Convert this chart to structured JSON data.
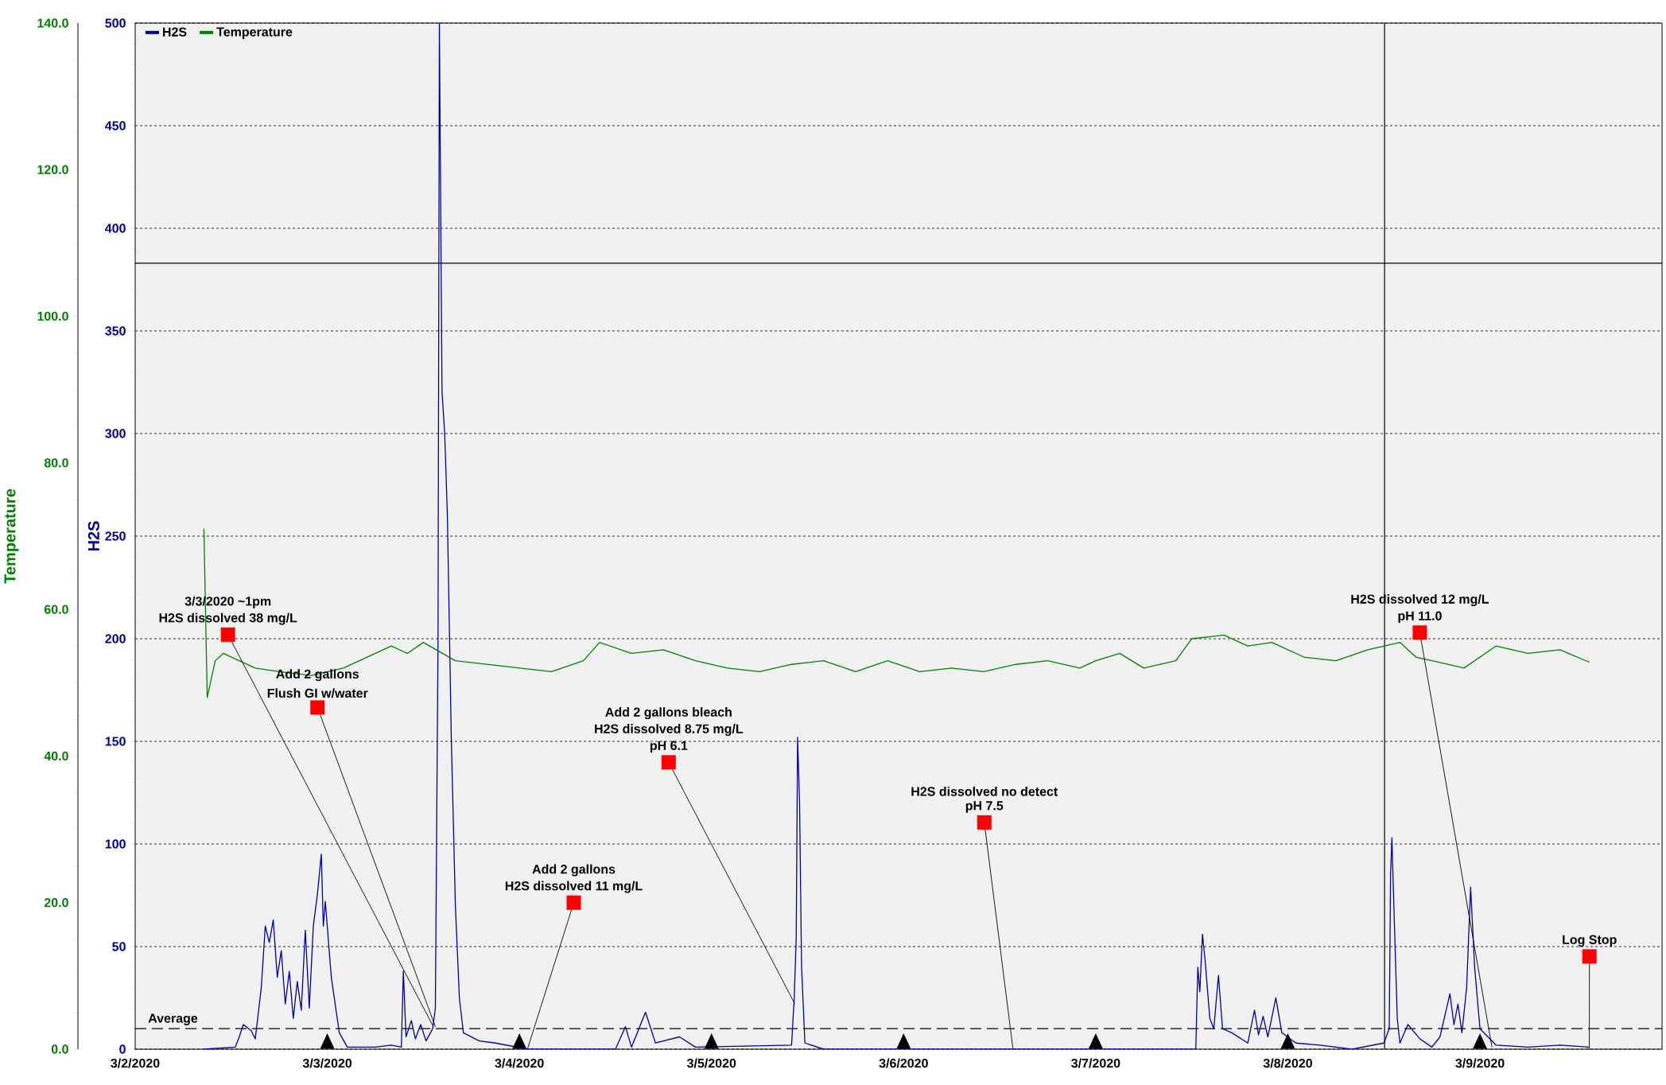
{
  "chart_data": {
    "type": "line",
    "xlabel": null,
    "ylabel": "H2S",
    "y2label": "Temperature",
    "xlim": [
      "2020-03-02",
      "2020-03-09T22:45"
    ],
    "xticks": [
      {
        "value": "2020-03-02",
        "label": "3/2/2020"
      },
      {
        "value": "2020-03-03",
        "label": "3/3/2020"
      },
      {
        "value": "2020-03-04",
        "label": "3/4/2020"
      },
      {
        "value": "2020-03-05",
        "label": "3/5/2020"
      },
      {
        "value": "2020-03-06",
        "label": "3/6/2020"
      },
      {
        "value": "2020-03-07",
        "label": "3/7/2020"
      },
      {
        "value": "2020-03-08",
        "label": "3/8/2020"
      },
      {
        "value": "2020-03-09",
        "label": "3/9/2020"
      }
    ],
    "ylim": [
      0,
      500
    ],
    "yticks": [
      0,
      50,
      100,
      150,
      200,
      250,
      300,
      350,
      400,
      450,
      500
    ],
    "y2lim": [
      0,
      140
    ],
    "y2ticks": [
      {
        "value": 0,
        "label": "0.0"
      },
      {
        "value": 20,
        "label": "20.0"
      },
      {
        "value": 40,
        "label": "40.0"
      },
      {
        "value": 60,
        "label": "60.0"
      },
      {
        "value": 80,
        "label": "80.0"
      },
      {
        "value": 100,
        "label": "100.0"
      },
      {
        "value": 120,
        "label": "120.0"
      },
      {
        "value": 140,
        "label": "140.0"
      }
    ],
    "grid": "y",
    "legend": "top left",
    "series": [
      {
        "name": "H2S",
        "color": "#0000a0",
        "x": [
          "2020-03-02T08:30",
          "2020-03-02T12:30",
          "2020-03-02T13:00",
          "2020-03-02T13:30",
          "2020-03-02T14:30",
          "2020-03-02T15:00",
          "2020-03-02T15:45",
          "2020-03-02T16:15",
          "2020-03-02T16:45",
          "2020-03-02T17:15",
          "2020-03-02T17:45",
          "2020-03-02T18:15",
          "2020-03-02T18:45",
          "2020-03-02T19:15",
          "2020-03-02T19:45",
          "2020-03-02T20:15",
          "2020-03-02T20:45",
          "2020-03-02T21:15",
          "2020-03-02T21:45",
          "2020-03-02T22:15",
          "2020-03-02T22:45",
          "2020-03-02T23:15",
          "2020-03-02T23:30",
          "2020-03-02T23:45",
          "2020-03-03T00:30",
          "2020-03-03T01:30",
          "2020-03-03T02:30",
          "2020-03-03T06:00",
          "2020-03-03T08:00",
          "2020-03-03T09:15",
          "2020-03-03T09:30",
          "2020-03-03T09:50",
          "2020-03-03T10:30",
          "2020-03-03T11:00",
          "2020-03-03T11:40",
          "2020-03-03T12:20",
          "2020-03-03T13:10",
          "2020-03-03T13:30",
          "2020-03-03T13:50",
          "2020-03-03T14:00",
          "2020-03-03T14:10",
          "2020-03-03T14:20",
          "2020-03-03T14:40",
          "2020-03-03T15:00",
          "2020-03-03T15:30",
          "2020-03-03T16:00",
          "2020-03-03T16:30",
          "2020-03-03T17:00",
          "2020-03-03T19:00",
          "2020-03-03T21:00",
          "2020-03-04T01:00",
          "2020-03-04T12:00",
          "2020-03-04T13:15",
          "2020-03-04T14:00",
          "2020-03-04T15:45",
          "2020-03-04T17:00",
          "2020-03-04T20:00",
          "2020-03-04T22:00",
          "2020-03-05T10:00",
          "2020-03-05T10:20",
          "2020-03-05T10:35",
          "2020-03-05T10:45",
          "2020-03-05T11:00",
          "2020-03-05T11:15",
          "2020-03-05T11:40",
          "2020-03-05T14:00",
          "2020-03-07T12:30",
          "2020-03-07T12:45",
          "2020-03-07T13:00",
          "2020-03-07T13:20",
          "2020-03-07T13:40",
          "2020-03-07T14:15",
          "2020-03-07T14:45",
          "2020-03-07T15:20",
          "2020-03-07T15:50",
          "2020-03-07T17:00",
          "2020-03-07T19:00",
          "2020-03-07T19:50",
          "2020-03-07T20:20",
          "2020-03-07T20:55",
          "2020-03-07T21:30",
          "2020-03-07T22:30",
          "2020-03-07T23:15",
          "2020-03-08T01:00",
          "2020-03-08T04:00",
          "2020-03-08T08:00",
          "2020-03-08T12:00",
          "2020-03-08T12:40",
          "2020-03-08T12:50",
          "2020-03-08T13:00",
          "2020-03-08T13:10",
          "2020-03-08T13:40",
          "2020-03-08T14:00",
          "2020-03-08T15:00",
          "2020-03-08T16:30",
          "2020-03-08T18:00",
          "2020-03-08T19:00",
          "2020-03-08T20:15",
          "2020-03-08T20:45",
          "2020-03-08T21:15",
          "2020-03-08T21:45",
          "2020-03-08T22:20",
          "2020-03-08T22:50",
          "2020-03-08T23:20",
          "2020-03-09T00:00",
          "2020-03-09T02:00",
          "2020-03-09T06:00",
          "2020-03-09T10:00",
          "2020-03-09T13:40"
        ],
        "values": [
          0,
          1,
          6,
          12,
          9,
          5,
          30,
          60,
          52,
          63,
          35,
          48,
          22,
          38,
          15,
          33,
          19,
          58,
          20,
          60,
          75,
          95,
          60,
          72,
          35,
          8,
          1,
          1,
          2,
          1,
          38,
          6,
          14,
          5,
          12,
          4,
          10,
          20,
          200,
          500,
          410,
          320,
          300,
          260,
          150,
          70,
          25,
          8,
          4,
          3,
          0,
          0,
          11,
          1,
          18,
          3,
          6,
          1,
          2,
          25,
          55,
          152,
          120,
          40,
          3,
          0,
          0,
          40,
          28,
          56,
          43,
          15,
          10,
          36,
          10,
          8,
          3,
          19,
          7,
          16,
          6,
          25,
          8,
          3,
          2,
          0,
          3,
          10,
          85,
          103,
          80,
          15,
          3,
          12,
          5,
          1,
          6,
          27,
          12,
          22,
          8,
          30,
          79,
          40,
          10,
          2,
          1,
          2,
          1
        ]
      },
      {
        "name": "Temperature",
        "color": "#008000",
        "axis": "y2",
        "x": [
          "2020-03-02T08:35",
          "2020-03-02T09:00",
          "2020-03-02T10:00",
          "2020-03-02T11:00",
          "2020-03-02T13:00",
          "2020-03-02T15:00",
          "2020-03-02T18:00",
          "2020-03-02T22:00",
          "2020-03-03T02:00",
          "2020-03-03T06:00",
          "2020-03-03T08:00",
          "2020-03-03T10:00",
          "2020-03-03T12:00",
          "2020-03-03T16:00",
          "2020-03-03T20:00",
          "2020-03-04T00:00",
          "2020-03-04T04:00",
          "2020-03-04T08:00",
          "2020-03-04T10:00",
          "2020-03-04T14:00",
          "2020-03-04T18:00",
          "2020-03-04T22:00",
          "2020-03-05T02:00",
          "2020-03-05T06:00",
          "2020-03-05T10:00",
          "2020-03-05T14:00",
          "2020-03-05T18:00",
          "2020-03-05T22:00",
          "2020-03-06T02:00",
          "2020-03-06T06:00",
          "2020-03-06T10:00",
          "2020-03-06T14:00",
          "2020-03-06T18:00",
          "2020-03-06T22:00",
          "2020-03-07T00:00",
          "2020-03-07T03:00",
          "2020-03-07T06:00",
          "2020-03-07T10:00",
          "2020-03-07T12:00",
          "2020-03-07T16:00",
          "2020-03-07T19:00",
          "2020-03-07T22:00",
          "2020-03-08T02:00",
          "2020-03-08T06:00",
          "2020-03-08T10:00",
          "2020-03-08T14:00",
          "2020-03-08T16:00",
          "2020-03-08T20:00",
          "2020-03-08T22:00",
          "2020-03-09T02:00",
          "2020-03-09T06:00",
          "2020-03-09T10:00",
          "2020-03-09T13:40"
        ],
        "values": [
          71,
          48,
          53,
          54,
          53,
          52,
          51.5,
          51,
          52,
          54,
          55,
          54,
          55.5,
          53,
          52.5,
          52,
          51.5,
          53,
          55.5,
          54,
          54.5,
          53,
          52,
          51.5,
          52.5,
          53,
          51.5,
          53,
          51.5,
          52,
          51.5,
          52.5,
          53,
          52,
          53,
          54,
          52,
          53,
          56,
          56.5,
          55,
          55.5,
          53.5,
          53,
          54.5,
          55.5,
          53.5,
          52.5,
          52,
          55,
          54,
          54.5,
          52.8
        ]
      }
    ],
    "ref_lines": [
      {
        "axis": "y",
        "value": 10,
        "label": "Average",
        "color": "#000000",
        "line_style": "dashed"
      },
      {
        "axis": "y",
        "value": 383,
        "color": "#000000",
        "line_style": "solid"
      },
      {
        "axis": "x",
        "value": "2020-03-08T12:05",
        "color": "#000000",
        "line_style": "solid"
      }
    ],
    "annotations": [
      "3/3/2020 ~1pm",
      {
        "text": "H2S dissolved 38 mg/L",
        "x": "2020-03-03T13:15",
        "y": 11
      },
      "Add 2 gallons",
      {
        "text": "Flush GI w/water",
        "x": "2020-03-03T13:30",
        "y": 11
      },
      "Add 2 gallons",
      {
        "text": "H2S dissolved 11 mg/L",
        "x": "2020-03-04T01:00",
        "y": 0
      },
      "Add 2 gallons bleach",
      "H2S dissolved 8.75 mg/L",
      {
        "text": "pH 6.1",
        "x": "2020-03-05T10:25",
        "y": 22
      },
      "H2S dissolved no detect",
      {
        "text": "pH 7.5",
        "x": "2020-03-06T13:40",
        "y": 0
      },
      "H2S dissolved 12 mg/L",
      {
        "text": "pH 11.0",
        "x": "2020-03-09T01:30",
        "y": 1
      },
      {
        "text": "Log Stop",
        "x": "2020-03-09T13:40",
        "y": 0
      }
    ]
  }
}
